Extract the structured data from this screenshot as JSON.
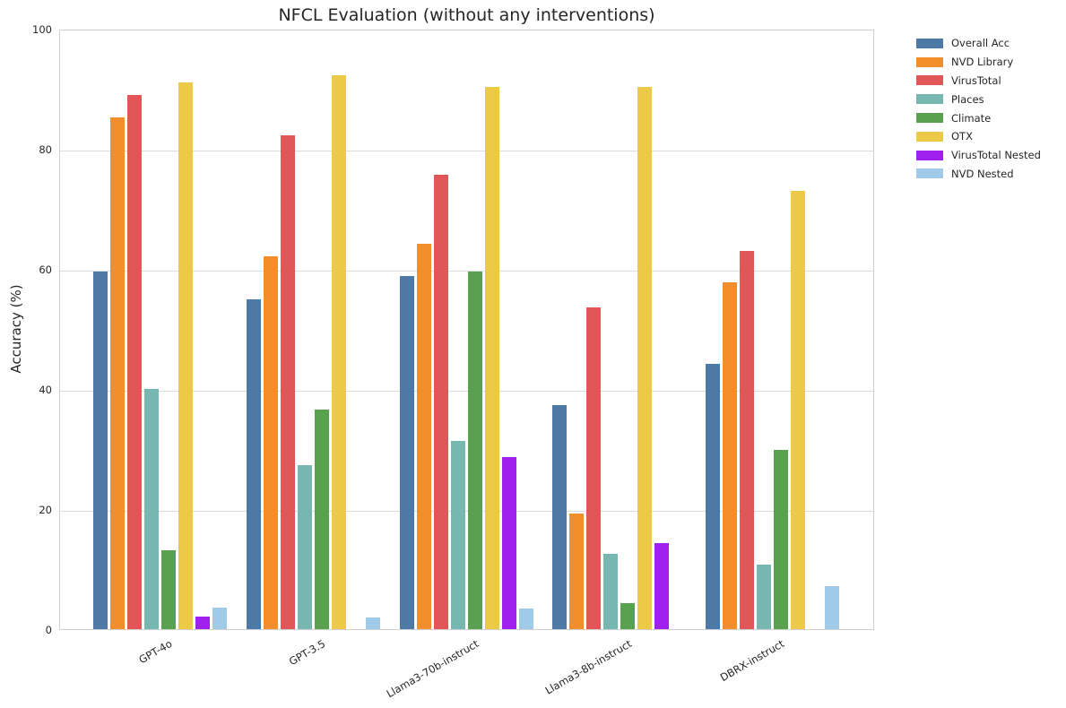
{
  "title": "NFCL Evaluation (without any interventions)",
  "ylabel": "Accuracy (%)",
  "chart_data": {
    "type": "bar",
    "title": "NFCL Evaluation (without any interventions)",
    "xlabel": "",
    "ylabel": "Accuracy (%)",
    "ylim": [
      0,
      100
    ],
    "yticks": [
      0,
      20,
      40,
      60,
      80,
      100
    ],
    "grid": true,
    "legend_position": "outside-upper-right",
    "categories": [
      "GPT-4o",
      "GPT-3.5",
      "Llama3-70b-instruct",
      "Llama3-8b-instruct",
      "DBRX-instruct"
    ],
    "series": [
      {
        "name": "Overall Acc",
        "color": "#4E79A7",
        "values": [
          59.5,
          55.0,
          58.8,
          37.3,
          44.2
        ]
      },
      {
        "name": "NVD Library",
        "color": "#F28E2B",
        "values": [
          85.3,
          62.1,
          64.2,
          19.2,
          57.8
        ]
      },
      {
        "name": "VirusTotal",
        "color": "#E15759",
        "values": [
          89.0,
          82.2,
          75.6,
          53.6,
          63.0
        ]
      },
      {
        "name": "Places",
        "color": "#76B7B2",
        "values": [
          40.0,
          27.3,
          31.4,
          12.5,
          10.7
        ]
      },
      {
        "name": "Climate",
        "color": "#59A14F",
        "values": [
          13.1,
          36.5,
          59.6,
          4.4,
          29.9
        ]
      },
      {
        "name": "OTX",
        "color": "#EDC948",
        "values": [
          91.0,
          92.3,
          90.3,
          90.3,
          73.0
        ]
      },
      {
        "name": "VirusTotal Nested",
        "color": "#A020F0",
        "values": [
          2.1,
          0,
          28.6,
          14.3,
          0
        ]
      },
      {
        "name": "NVD Nested",
        "color": "#A0CBE8",
        "values": [
          3.6,
          1.9,
          3.5,
          0,
          7.2
        ]
      }
    ]
  }
}
